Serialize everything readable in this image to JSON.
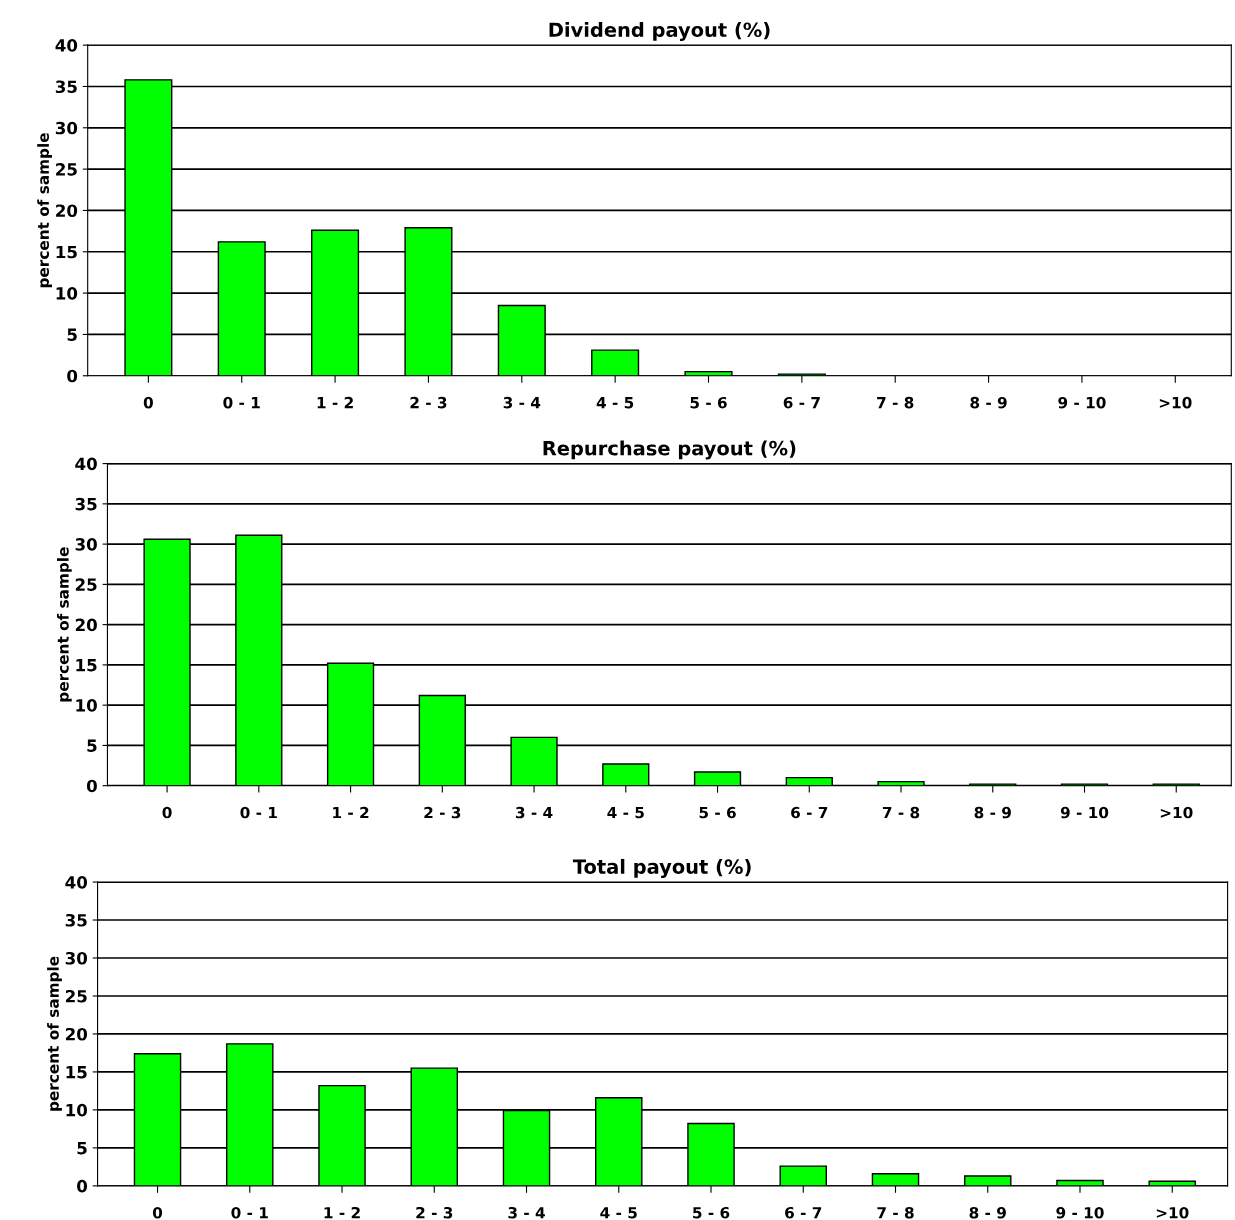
{
  "chart_data": [
    {
      "type": "bar",
      "title": "Dividend payout (%)",
      "ylabel": "percent of sample",
      "categories": [
        "0",
        "0 - 1",
        "1 - 2",
        "2 - 3",
        "3 - 4",
        "4 - 5",
        "5 - 6",
        "6 - 7",
        "7 - 8",
        "8 - 9",
        "9 - 10",
        ">10"
      ],
      "values": [
        35.8,
        16.2,
        17.6,
        17.9,
        8.5,
        3.1,
        0.5,
        0.2,
        0,
        0,
        0,
        0
      ],
      "color": "#00ff00",
      "ylim": [
        0,
        40
      ],
      "yticks": [
        0,
        5,
        10,
        15,
        20,
        25,
        30,
        35,
        40
      ],
      "grid": "y",
      "legend": false
    },
    {
      "type": "bar",
      "title": "Repurchase payout (%)",
      "ylabel": "percent of sample",
      "categories": [
        "0",
        "0 - 1",
        "1 - 2",
        "2 - 3",
        "3 - 4",
        "4 - 5",
        "5 - 6",
        "6 - 7",
        "7 - 8",
        "8 - 9",
        "9 - 10",
        ">10"
      ],
      "values": [
        30.6,
        31.1,
        15.2,
        11.2,
        6.0,
        2.7,
        1.7,
        1.0,
        0.5,
        0.2,
        0.2,
        0.2
      ],
      "color": "#00ff00",
      "ylim": [
        0,
        40
      ],
      "yticks": [
        0,
        5,
        10,
        15,
        20,
        25,
        30,
        35,
        40
      ],
      "grid": "y",
      "legend": false
    },
    {
      "type": "bar",
      "title": "Total payout (%)",
      "ylabel": "percent of sample",
      "categories": [
        "0",
        "0 - 1",
        "1 - 2",
        "2 - 3",
        "3 - 4",
        "4 - 5",
        "5 - 6",
        "6 - 7",
        "7 - 8",
        "8 - 9",
        "9 - 10",
        ">10"
      ],
      "values": [
        17.4,
        18.7,
        13.2,
        15.5,
        9.9,
        11.6,
        8.2,
        2.6,
        1.6,
        1.3,
        0.7,
        0.6
      ],
      "color": "#00ff00",
      "ylim": [
        0,
        40
      ],
      "yticks": [
        0,
        5,
        10,
        15,
        20,
        25,
        30,
        35,
        40
      ],
      "grid": "y",
      "legend": false
    }
  ]
}
